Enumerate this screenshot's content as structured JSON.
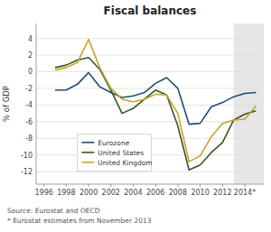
{
  "chart_data": {
    "type": "line",
    "title": "Fiscal balances",
    "ylabel": "% of GDP",
    "annotations": [
      "Source: Eurostat and OECD",
      "* Eurostat estimates from November 2013"
    ],
    "x": [
      1997,
      1998,
      1999,
      2000,
      2001,
      2002,
      2003,
      2004,
      2005,
      2006,
      2007,
      2008,
      2009,
      2010,
      2011,
      2012,
      2013,
      2014,
      2015
    ],
    "series": [
      {
        "name": "Eurozone",
        "color": "#1f4e79",
        "values": [
          -2.2,
          -2.2,
          -1.5,
          -0.1,
          -1.8,
          -2.5,
          -3.1,
          -2.9,
          -2.5,
          -1.4,
          -0.7,
          -2.0,
          -6.3,
          -6.2,
          -4.2,
          -3.7,
          -3.0,
          -2.6,
          -2.5
        ]
      },
      {
        "name": "United States",
        "color": "#375623",
        "values": [
          0.5,
          0.8,
          1.4,
          1.7,
          0.3,
          -2.2,
          -5.0,
          -4.4,
          -3.3,
          -2.2,
          -2.8,
          -6.5,
          -11.8,
          -11.2,
          -9.7,
          -8.5,
          -5.8,
          -5.1,
          -4.7
        ]
      },
      {
        "name": "United Kingdom",
        "color": "#c9a227",
        "values": [
          0.2,
          0.5,
          1.1,
          3.9,
          0.5,
          -2.0,
          -3.3,
          -3.6,
          -3.3,
          -2.7,
          -2.8,
          -5.0,
          -10.8,
          -10.1,
          -7.8,
          -6.2,
          -5.8,
          -5.7,
          -4.1
        ]
      }
    ],
    "xlim": [
      1995.3,
      2015.7
    ],
    "xticks": [
      1996,
      1998,
      2000,
      2002,
      2004,
      2006,
      2008,
      2010,
      2012,
      {
        "value": 2014,
        "label": "2014*"
      }
    ],
    "ylim": [
      -13.5,
      5.8
    ],
    "yticks": [
      4,
      2,
      0,
      -2,
      -4,
      -6,
      -8,
      -10,
      -12
    ],
    "shaded_range": [
      2013.0,
      2016.0
    ],
    "grid": true,
    "legend": "lower left"
  }
}
